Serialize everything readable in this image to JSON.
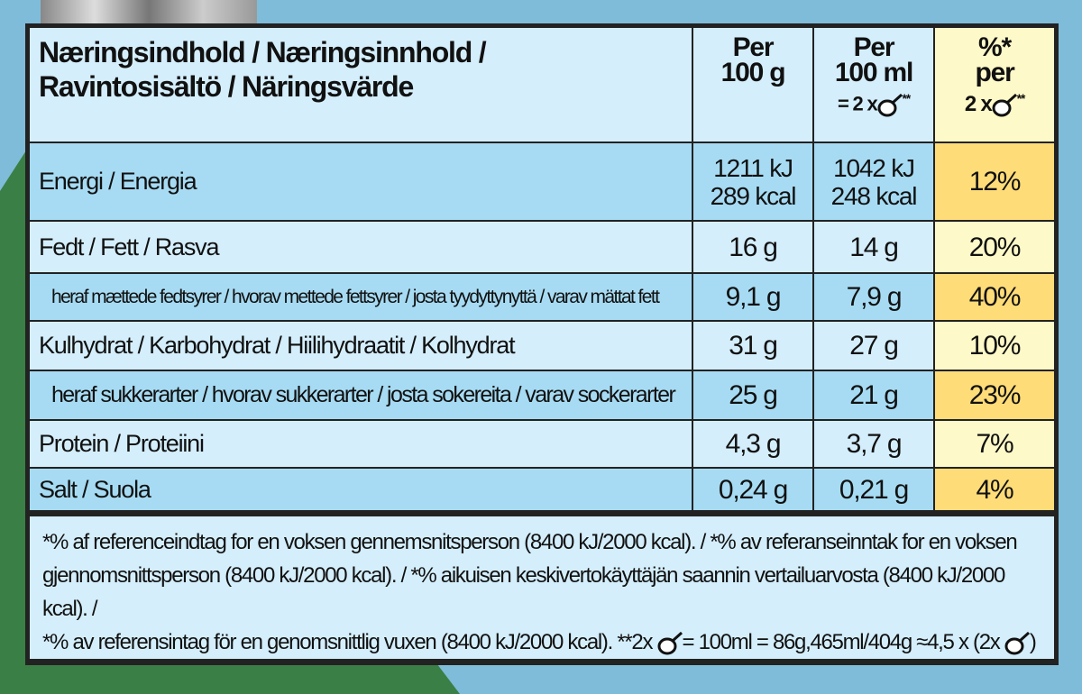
{
  "colors": {
    "background": "#7fbcd9",
    "green": "#3a7f45",
    "row_light": "#d4eefb",
    "row_dark": "#a6dbf3",
    "pct_light": "#fef9c8",
    "pct_dark": "#fedc78"
  },
  "header": {
    "title_line1": "Næringsindhold / Næringsinnhold /",
    "title_line2": "Ravintosisältö / Näringsvärde",
    "col1_line1": "Per",
    "col1_line2": "100 g",
    "col2_line1": "Per",
    "col2_line2": "100 ml",
    "col2_line3": "= 2 x",
    "col2_stars": "**",
    "col3_line1": "%*",
    "col3_line2": "per",
    "col3_line3": "2 x",
    "col3_stars": "**",
    "spoon_icon": "scoop-icon"
  },
  "rows": [
    {
      "label": "Energi / Energia",
      "per100g": "1211 kJ",
      "per100g_2": "289 kcal",
      "per100ml": "1042 kJ",
      "per100ml_2": "248 kcal",
      "pct": "12%"
    },
    {
      "label": "Fedt / Fett / Rasva",
      "per100g": "16 g",
      "per100ml": "14 g",
      "pct": "20%"
    },
    {
      "label": "heraf mættede fedtsyrer / hvorav mettede fettsyrer / josta tyydyttynyttä / varav mättat fett",
      "per100g": "9,1 g",
      "per100ml": "7,9 g",
      "pct": "40%"
    },
    {
      "label": "Kulhydrat / Karbohydrat / Hiilihydraatit / Kolhydrat",
      "per100g": "31 g",
      "per100ml": "27 g",
      "pct": "10%"
    },
    {
      "label": "heraf sukkerarter / hvorav sukkerarter / josta sokereita / varav sockerarter",
      "per100g": "25 g",
      "per100ml": "21 g",
      "pct": "23%"
    },
    {
      "label": "Protein / Proteiini",
      "per100g": "4,3 g",
      "per100ml": "3,7 g",
      "pct": "7%"
    },
    {
      "label": "Salt / Suola",
      "per100g": "0,24 g",
      "per100ml": "0,21 g",
      "pct": "4%"
    }
  ],
  "footer": {
    "line1": "*% af referenceindtag for en voksen gennemsnitsperson (8400 kJ/2000 kcal). / *% av referanseinntak for en voksen",
    "line2": "gjennomsnittsperson (8400 kJ/2000 kcal). / *% aikuisen keskivertokäyttäjän saannin vertailuarvosta (8400 kJ/2000 kcal). /",
    "line3a": "*% av referensintag för en genomsnittlig vuxen (8400 kJ/2000 kcal).  **2x",
    "line3b": "= 100ml = 86g,465ml/404g ≈4,5 x (2x",
    "line3c": ")"
  }
}
